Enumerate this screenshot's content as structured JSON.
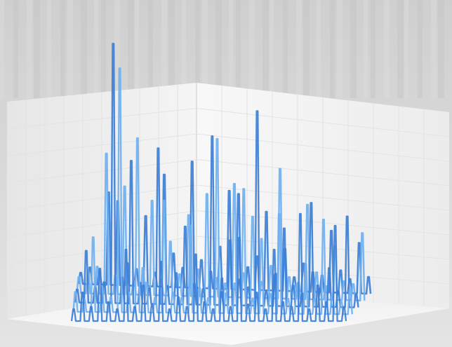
{
  "chart_data": {
    "type": "line",
    "view": "3d-perspective",
    "title": "",
    "xlabel": "",
    "ylabel": "",
    "zlabel": "",
    "axis_tick_labels": "none",
    "grid": true,
    "legend": "none",
    "colors": {
      "series": "#3d7fd6",
      "series_highlight": "#6fb0f0",
      "walls": "#f2f2f2",
      "floor": "#f7f7f7",
      "background": "#d9d9d9"
    },
    "series": [
      {
        "values": [
          0.04,
          0.06,
          0.05,
          0.33,
          0.3,
          0.08,
          0.06,
          0.25,
          0.05,
          0.4,
          0.12,
          0.07,
          0.45,
          0.1,
          0.06,
          0.15,
          0.35,
          0.34,
          0.08,
          0.12,
          0.28,
          0.06,
          0.15,
          0.05,
          0.1,
          0.07,
          0.06,
          0.22,
          0.08,
          0.05,
          0.18,
          0.06
        ]
      },
      {
        "values": [
          0.06,
          0.08,
          0.1,
          0.52,
          0.07,
          0.4,
          0.05,
          0.1,
          0.35,
          0.06,
          0.2,
          0.08,
          0.3,
          0.1,
          0.38,
          0.07,
          0.05,
          0.42,
          0.09,
          0.3,
          0.06,
          0.12,
          0.48,
          0.08,
          0.06,
          0.35,
          0.1,
          0.05,
          0.2,
          0.07,
          0.06,
          0.25
        ]
      },
      {
        "values": [
          0.05,
          0.2,
          0.06,
          0.08,
          1.0,
          0.1,
          0.55,
          0.08,
          0.06,
          0.6,
          0.07,
          0.12,
          0.3,
          0.08,
          0.06,
          0.65,
          0.05,
          0.25,
          0.1,
          0.07,
          0.75,
          0.06,
          0.12,
          0.3,
          0.08,
          0.05,
          0.4,
          0.07,
          0.15,
          0.06,
          0.35,
          0.05
        ]
      },
      {
        "values": [
          0.08,
          0.05,
          0.3,
          0.1,
          0.06,
          0.98,
          0.08,
          0.7,
          0.12,
          0.06,
          0.45,
          0.08,
          0.06,
          0.35,
          0.1,
          0.06,
          0.7,
          0.08,
          0.12,
          0.5,
          0.06,
          0.3,
          0.08,
          0.4,
          0.06,
          0.12,
          0.2,
          0.06,
          0.38,
          0.08,
          0.05,
          0.1
        ]
      },
      {
        "values": [
          0.05,
          0.12,
          0.06,
          0.22,
          0.08,
          0.05,
          0.3,
          0.06,
          0.15,
          0.07,
          0.25,
          0.05,
          0.1,
          0.06,
          0.28,
          0.08,
          0.05,
          0.18,
          0.06,
          0.35,
          0.07,
          0.12,
          0.05,
          0.3,
          0.08,
          0.06,
          0.45,
          0.05,
          0.15,
          0.08,
          0.4,
          0.06
        ]
      }
    ]
  }
}
